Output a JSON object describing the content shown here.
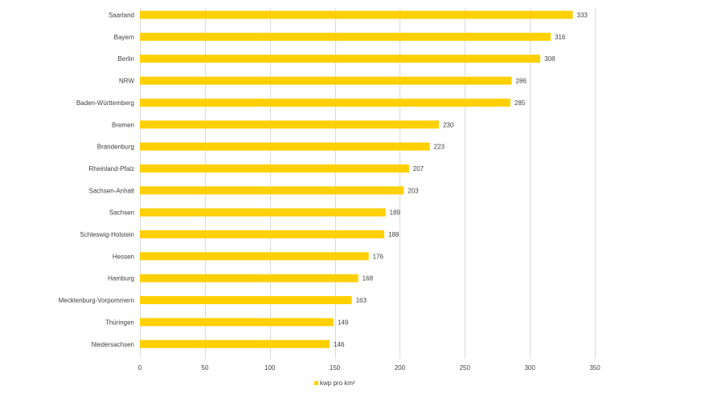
{
  "chart_data": {
    "type": "bar",
    "orientation": "horizontal",
    "categories": [
      "Saarland",
      "Bayern",
      "Berlin",
      "NRW",
      "Baden-Württemberg",
      "Bremen",
      "Brandenburg",
      "Rheinland-Pfalz",
      "Sachsen-Anhalt",
      "Sachsen",
      "Schleswig-Holstein",
      "Hessen",
      "Hamburg",
      "Mecklenburg-Vorpommern",
      "Thüringen",
      "Niedersachsen"
    ],
    "values": [
      333,
      316,
      308,
      286,
      285,
      230,
      223,
      207,
      203,
      189,
      188,
      176,
      168,
      163,
      149,
      146
    ],
    "value_labels": [
      "333",
      "316",
      "308",
      "286",
      "285",
      "230",
      "223",
      "207",
      "203",
      "189",
      "188",
      "176",
      "168",
      "163",
      "149",
      "146"
    ],
    "xlim": [
      0,
      350
    ],
    "xticks": [
      0,
      50,
      100,
      150,
      200,
      250,
      300,
      350
    ],
    "xtick_labels": [
      "0",
      "50",
      "100",
      "150",
      "200",
      "250",
      "300",
      "350"
    ],
    "series_name": "kwp pro km²",
    "bar_color": "#ffd000",
    "grid": true,
    "legend_position": "bottom"
  }
}
